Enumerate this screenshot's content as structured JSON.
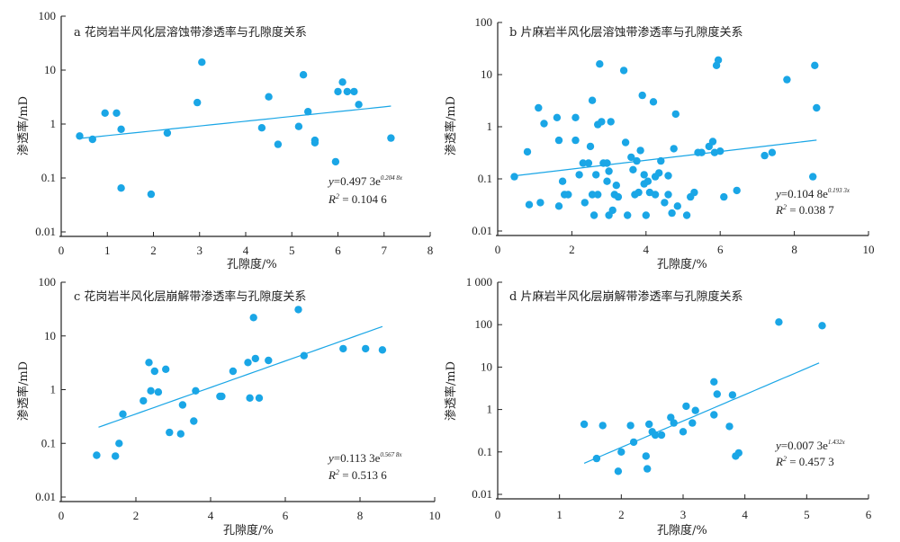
{
  "colors": {
    "point": "#1aa6e6",
    "fit": "#1aa6e6",
    "axis": "#222222"
  },
  "chart_data": [
    {
      "type": "scatter",
      "title": "a 花岗岩半风化层溶蚀带渗透率与孔隙度关系",
      "xlabel": "孔隙度/%",
      "ylabel": "渗透率/mD",
      "xlim": [
        0,
        8
      ],
      "ylim": [
        0.01,
        100
      ],
      "yscale": "log",
      "xticks": [
        "0",
        "1",
        "2",
        "3",
        "4",
        "5",
        "6",
        "7",
        "8"
      ],
      "yticks": [
        "0.01",
        "0.1",
        "1",
        "10",
        "100"
      ],
      "equation": {
        "y": "y",
        "eq_text": "=0.497 3e",
        "exponent": "0.204 8x",
        "r2_label": "R",
        "r2_sup": "2",
        "r2_text": " = 0.104 6"
      },
      "fit": {
        "a": 0.4973,
        "b": 0.2048,
        "x_range": [
          0.35,
          7.15
        ]
      },
      "points": [
        [
          0.4,
          0.6
        ],
        [
          0.68,
          0.52
        ],
        [
          0.95,
          1.6
        ],
        [
          1.2,
          1.6
        ],
        [
          1.3,
          0.8
        ],
        [
          1.3,
          0.065
        ],
        [
          1.95,
          0.05
        ],
        [
          2.3,
          0.68
        ],
        [
          2.95,
          2.5
        ],
        [
          3.05,
          14
        ],
        [
          4.35,
          0.85
        ],
        [
          4.5,
          3.2
        ],
        [
          4.7,
          0.42
        ],
        [
          5.15,
          0.9
        ],
        [
          5.25,
          8.2
        ],
        [
          5.35,
          1.7
        ],
        [
          5.5,
          0.5
        ],
        [
          5.5,
          0.45
        ],
        [
          5.95,
          0.2
        ],
        [
          6.0,
          4.0
        ],
        [
          6.1,
          6.0
        ],
        [
          6.2,
          4.0
        ],
        [
          6.35,
          4.0
        ],
        [
          6.45,
          2.3
        ],
        [
          7.15,
          0.55
        ]
      ]
    },
    {
      "type": "scatter",
      "title": "b 片麻岩半风化层溶蚀带渗透率与孔隙度关系",
      "xlabel": "孔隙度/%",
      "ylabel": "渗透率/mD",
      "xlim": [
        0,
        10
      ],
      "ylim": [
        0.01,
        100
      ],
      "yscale": "log",
      "xticks": [
        "0",
        "2",
        "4",
        "6",
        "8",
        "10"
      ],
      "yticks": [
        "0.01",
        "0.1",
        "1",
        "10",
        "100"
      ],
      "equation": {
        "y": "y",
        "eq_text": "=0.104 8e",
        "exponent": "0.193 3x",
        "r2_label": "R",
        "r2_sup": "2",
        "r2_text": " = 0.038 7"
      },
      "fit": {
        "a": 0.1048,
        "b": 0.1933,
        "x_range": [
          0.4,
          8.6
        ]
      },
      "points": [
        [
          0.45,
          0.11
        ],
        [
          0.8,
          0.33
        ],
        [
          0.85,
          0.032
        ],
        [
          1.1,
          2.3
        ],
        [
          1.15,
          0.035
        ],
        [
          1.25,
          1.15
        ],
        [
          1.6,
          1.5
        ],
        [
          1.65,
          0.55
        ],
        [
          1.65,
          0.03
        ],
        [
          1.75,
          0.09
        ],
        [
          1.8,
          0.05
        ],
        [
          1.9,
          0.05
        ],
        [
          2.1,
          1.5
        ],
        [
          2.1,
          0.55
        ],
        [
          2.2,
          0.12
        ],
        [
          2.3,
          0.2
        ],
        [
          2.35,
          0.035
        ],
        [
          2.45,
          0.2
        ],
        [
          2.5,
          0.42
        ],
        [
          2.55,
          3.2
        ],
        [
          2.55,
          0.05
        ],
        [
          2.6,
          0.02
        ],
        [
          2.65,
          0.12
        ],
        [
          2.7,
          1.1
        ],
        [
          2.7,
          0.05
        ],
        [
          2.75,
          16
        ],
        [
          2.8,
          1.25
        ],
        [
          2.85,
          0.2
        ],
        [
          2.95,
          0.2
        ],
        [
          2.95,
          0.09
        ],
        [
          3.0,
          0.02
        ],
        [
          3.0,
          0.14
        ],
        [
          3.05,
          1.25
        ],
        [
          3.1,
          0.025
        ],
        [
          3.15,
          0.05
        ],
        [
          3.2,
          0.075
        ],
        [
          3.25,
          0.045
        ],
        [
          3.4,
          12
        ],
        [
          3.45,
          0.5
        ],
        [
          3.5,
          0.02
        ],
        [
          3.6,
          0.26
        ],
        [
          3.65,
          0.15
        ],
        [
          3.7,
          0.05
        ],
        [
          3.75,
          0.22
        ],
        [
          3.8,
          0.055
        ],
        [
          3.85,
          0.35
        ],
        [
          3.9,
          4.0
        ],
        [
          3.95,
          0.12
        ],
        [
          3.95,
          0.08
        ],
        [
          4.0,
          0.02
        ],
        [
          4.05,
          0.09
        ],
        [
          4.1,
          0.055
        ],
        [
          4.2,
          3.0
        ],
        [
          4.25,
          0.05
        ],
        [
          4.25,
          0.11
        ],
        [
          4.35,
          0.13
        ],
        [
          4.4,
          0.22
        ],
        [
          4.5,
          0.035
        ],
        [
          4.6,
          0.115
        ],
        [
          4.6,
          0.05
        ],
        [
          4.7,
          0.022
        ],
        [
          4.75,
          0.38
        ],
        [
          4.8,
          1.75
        ],
        [
          4.85,
          0.03
        ],
        [
          5.1,
          0.02
        ],
        [
          5.2,
          0.045
        ],
        [
          5.3,
          0.055
        ],
        [
          5.4,
          0.32
        ],
        [
          5.5,
          0.32
        ],
        [
          5.7,
          0.42
        ],
        [
          5.8,
          0.52
        ],
        [
          5.85,
          0.32
        ],
        [
          5.9,
          15
        ],
        [
          5.95,
          19
        ],
        [
          6.0,
          0.34
        ],
        [
          6.1,
          0.045
        ],
        [
          6.45,
          0.06
        ],
        [
          7.2,
          0.28
        ],
        [
          7.4,
          0.32
        ],
        [
          7.8,
          8.0
        ],
        [
          8.5,
          0.11
        ],
        [
          8.55,
          15
        ],
        [
          8.6,
          2.3
        ]
      ]
    },
    {
      "type": "scatter",
      "title": "c 花岗岩半风化层崩解带渗透率与孔隙度关系",
      "xlabel": "孔隙度/%",
      "ylabel": "渗透率/mD",
      "xlim": [
        0,
        10
      ],
      "ylim": [
        0.01,
        100
      ],
      "yscale": "log",
      "xticks": [
        "0",
        "2",
        "4",
        "6",
        "8",
        "10"
      ],
      "yticks": [
        "0.01",
        "0.1",
        "1",
        "10",
        "100"
      ],
      "equation": {
        "y": "y",
        "eq_text": "=0.113 3e",
        "exponent": "0.567 8x",
        "r2_label": "R",
        "r2_sup": "2",
        "r2_text": " = 0.513 6"
      },
      "fit": {
        "a": 0.1133,
        "b": 0.5678,
        "x_range": [
          1.0,
          8.6
        ]
      },
      "points": [
        [
          0.95,
          0.06
        ],
        [
          1.45,
          0.058
        ],
        [
          1.55,
          0.1
        ],
        [
          1.65,
          0.35
        ],
        [
          2.2,
          0.62
        ],
        [
          2.35,
          3.2
        ],
        [
          2.4,
          0.95
        ],
        [
          2.5,
          2.2
        ],
        [
          2.6,
          0.9
        ],
        [
          2.8,
          2.4
        ],
        [
          2.9,
          0.16
        ],
        [
          3.2,
          0.15
        ],
        [
          3.25,
          0.52
        ],
        [
          3.55,
          0.26
        ],
        [
          3.6,
          0.95
        ],
        [
          4.25,
          0.75
        ],
        [
          4.3,
          0.75
        ],
        [
          4.6,
          2.2
        ],
        [
          5.0,
          3.2
        ],
        [
          5.05,
          0.7
        ],
        [
          5.15,
          22
        ],
        [
          5.2,
          3.8
        ],
        [
          5.3,
          0.7
        ],
        [
          5.55,
          3.5
        ],
        [
          6.35,
          31
        ],
        [
          6.5,
          4.3
        ],
        [
          7.55,
          5.8
        ],
        [
          8.15,
          5.8
        ],
        [
          8.6,
          5.5
        ]
      ]
    },
    {
      "type": "scatter",
      "title": "d 片麻岩半风化层崩解带渗透率与孔隙度关系",
      "xlabel": "孔隙度/%",
      "ylabel": "渗透率/mD",
      "xlim": [
        0,
        6
      ],
      "ylim": [
        0.01,
        1000
      ],
      "yscale": "log",
      "xticks": [
        "0",
        "1",
        "2",
        "3",
        "4",
        "5",
        "6"
      ],
      "yticks": [
        "0.01",
        "0.1",
        "1",
        "10",
        "100",
        "1 000"
      ],
      "equation": {
        "y": "y",
        "eq_text": "=0.007 3e",
        "exponent": "1.432x",
        "r2_label": "R",
        "r2_sup": "2",
        "r2_text": " = 0.457 3"
      },
      "fit": {
        "a": 0.0073,
        "b": 1.432,
        "x_range": [
          1.4,
          5.2
        ]
      },
      "points": [
        [
          1.4,
          0.45
        ],
        [
          1.6,
          0.07
        ],
        [
          1.7,
          0.42
        ],
        [
          1.95,
          0.035
        ],
        [
          2.0,
          0.1
        ],
        [
          2.15,
          0.42
        ],
        [
          2.2,
          0.17
        ],
        [
          2.4,
          0.08
        ],
        [
          2.42,
          0.04
        ],
        [
          2.45,
          0.45
        ],
        [
          2.5,
          0.3
        ],
        [
          2.55,
          0.25
        ],
        [
          2.65,
          0.25
        ],
        [
          2.8,
          0.65
        ],
        [
          2.85,
          0.48
        ],
        [
          3.0,
          0.3
        ],
        [
          3.05,
          1.2
        ],
        [
          3.15,
          0.48
        ],
        [
          3.2,
          0.95
        ],
        [
          3.5,
          0.75
        ],
        [
          3.5,
          4.5
        ],
        [
          3.55,
          2.3
        ],
        [
          3.75,
          0.4
        ],
        [
          3.8,
          2.2
        ],
        [
          3.85,
          0.08
        ],
        [
          3.9,
          0.095
        ],
        [
          4.55,
          115
        ],
        [
          5.25,
          95
        ]
      ]
    }
  ]
}
